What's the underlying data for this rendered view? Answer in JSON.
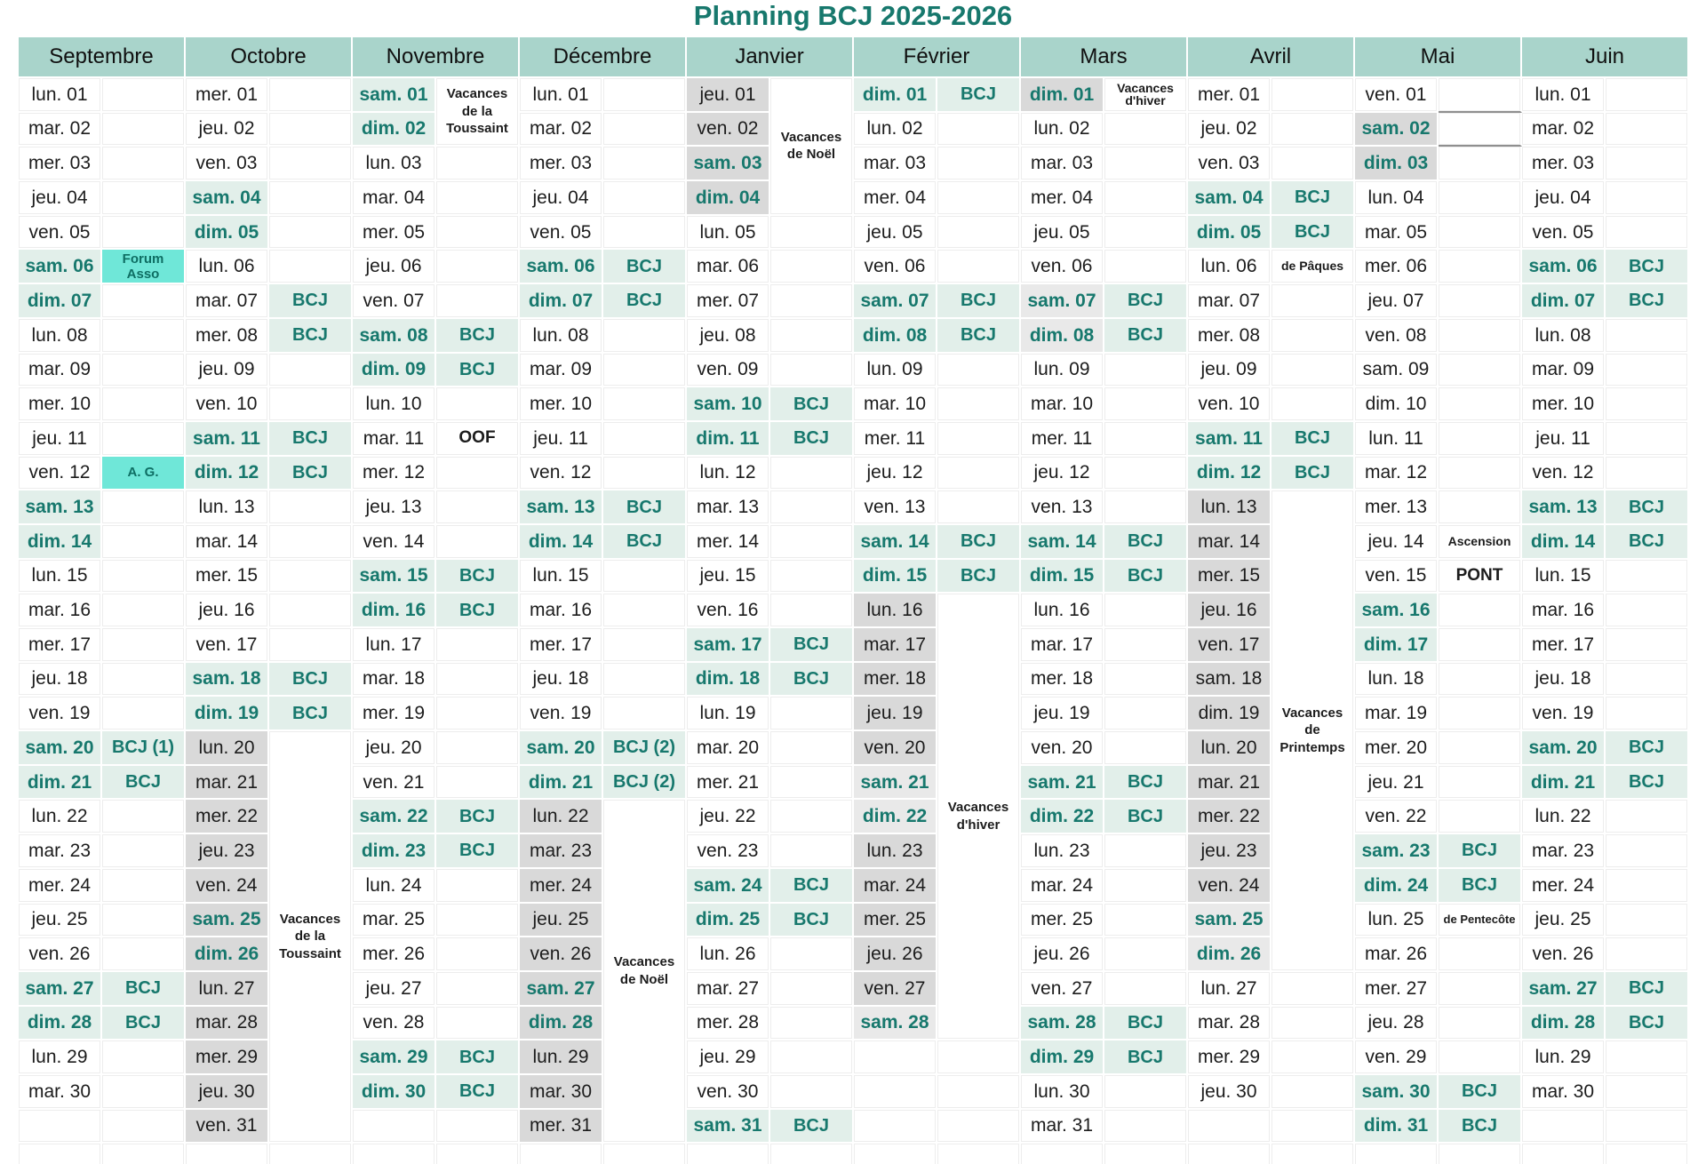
{
  "title": "Planning BCJ 2025-2026",
  "colors": {
    "title_text": "#17786d",
    "header_bg": "#a9d4cb",
    "weekend_bg": "#e2efea",
    "teal_text": "#17786d",
    "bcj_bg": "#e2efea",
    "vacation_gray": "#d9d9d9",
    "vacation_light_gray": "#e9e9e9",
    "event_bg": "#6fe7d8",
    "gridline": "#ededed",
    "box_border": "#8f8f8f"
  },
  "calendar": {
    "months": [
      {
        "name": "Septembre",
        "days": [
          "lun. 01",
          "mar. 02",
          "mer. 03",
          "jeu. 04",
          "ven. 05",
          [
            "sam. 06",
            "we",
            "Forum\nAsso",
            "event"
          ],
          [
            "dim. 07",
            "we"
          ],
          "lun. 08",
          "mar. 09",
          "mer. 10",
          "jeu. 11",
          [
            "ven. 12",
            "",
            "A. G.",
            "event"
          ],
          [
            "sam. 13",
            "we"
          ],
          [
            "dim. 14",
            "we"
          ],
          "lun. 15",
          "mar. 16",
          "mer. 17",
          "jeu. 18",
          "ven. 19",
          [
            "sam. 20",
            "we",
            "BCJ (1)",
            "bcj"
          ],
          [
            "dim. 21",
            "we",
            "BCJ",
            "bcj"
          ],
          "lun. 22",
          "mar. 23",
          "mer. 24",
          "jeu. 25",
          "ven. 26",
          [
            "sam. 27",
            "we",
            "BCJ",
            "bcj"
          ],
          [
            "dim. 28",
            "we",
            "BCJ",
            "bcj"
          ],
          "lun. 29",
          "mar. 30"
        ],
        "merges": []
      },
      {
        "name": "Octobre",
        "days": [
          "mer. 01",
          "jeu. 02",
          "ven. 03",
          [
            "sam. 04",
            "we"
          ],
          [
            "dim. 05",
            "we"
          ],
          "lun. 06",
          [
            "mar. 07",
            "",
            "BCJ",
            "bcj"
          ],
          [
            "mer. 08",
            "",
            "BCJ",
            "bcj"
          ],
          "jeu. 09",
          "ven. 10",
          [
            "sam. 11",
            "we",
            "BCJ",
            "bcj"
          ],
          [
            "dim. 12",
            "we",
            "BCJ",
            "bcj"
          ],
          "lun. 13",
          "mar. 14",
          "mer. 15",
          "jeu. 16",
          "ven. 17",
          [
            "sam. 18",
            "we",
            "BCJ",
            "bcj"
          ],
          [
            "dim. 19",
            "we",
            "BCJ",
            "bcj"
          ],
          [
            "lun. 20",
            "gray"
          ],
          [
            "mar. 21",
            "gray"
          ],
          [
            "mer. 22",
            "gray"
          ],
          [
            "jeu. 23",
            "gray"
          ],
          [
            "ven. 24",
            "gray"
          ],
          [
            "sam. 25",
            "grayWe"
          ],
          [
            "dim. 26",
            "grayWe"
          ],
          [
            "lun. 27",
            "gray"
          ],
          [
            "mar. 28",
            "gray"
          ],
          [
            "mer. 29",
            "gray"
          ],
          [
            "jeu. 30",
            "gray"
          ],
          [
            "ven. 31",
            "gray"
          ]
        ],
        "merges": [
          {
            "start": 20,
            "span": 12,
            "text": "Vacances\nde la\nToussaint"
          }
        ]
      },
      {
        "name": "Novembre",
        "days": [
          [
            "sam. 01",
            "we"
          ],
          [
            "dim. 02",
            "we"
          ],
          "lun. 03",
          "mar. 04",
          "mer. 05",
          "jeu. 06",
          "ven. 07",
          [
            "sam. 08",
            "we",
            "BCJ",
            "bcj"
          ],
          [
            "dim. 09",
            "we",
            "BCJ",
            "bcj"
          ],
          "lun. 10",
          [
            "mar. 11",
            "",
            "OOF",
            "noteLg"
          ],
          "mer. 12",
          "jeu. 13",
          "ven. 14",
          [
            "sam. 15",
            "we",
            "BCJ",
            "bcj"
          ],
          [
            "dim. 16",
            "we",
            "BCJ",
            "bcj"
          ],
          "lun. 17",
          "mar. 18",
          "mer. 19",
          "jeu. 20",
          "ven. 21",
          [
            "sam. 22",
            "we",
            "BCJ",
            "bcj"
          ],
          [
            "dim. 23",
            "we",
            "BCJ",
            "bcj"
          ],
          "lun. 24",
          "mar. 25",
          "mer. 26",
          "jeu. 27",
          "ven. 28",
          [
            "sam. 29",
            "we",
            "BCJ",
            "bcj"
          ],
          [
            "dim. 30",
            "we",
            "BCJ",
            "bcj"
          ]
        ],
        "merges": [
          {
            "start": 1,
            "span": 2,
            "text": "Vacances\nde la\nToussaint"
          }
        ]
      },
      {
        "name": "Décembre",
        "days": [
          "lun. 01",
          "mar. 02",
          "mer. 03",
          "jeu. 04",
          "ven. 05",
          [
            "sam. 06",
            "we",
            "BCJ",
            "bcj"
          ],
          [
            "dim. 07",
            "we",
            "BCJ",
            "bcj"
          ],
          "lun. 08",
          "mar. 09",
          "mer. 10",
          "jeu. 11",
          "ven. 12",
          [
            "sam. 13",
            "we",
            "BCJ",
            "bcj"
          ],
          [
            "dim. 14",
            "we",
            "BCJ",
            "bcj"
          ],
          "lun. 15",
          "mar. 16",
          "mer. 17",
          "jeu. 18",
          "ven. 19",
          [
            "sam. 20",
            "we",
            "BCJ (2)",
            "bcj"
          ],
          [
            "dim. 21",
            "we",
            "BCJ (2)",
            "bcj"
          ],
          [
            "lun. 22",
            "gray"
          ],
          [
            "mar. 23",
            "gray"
          ],
          [
            "mer. 24",
            "gray"
          ],
          [
            "jeu. 25",
            "gray"
          ],
          [
            "ven. 26",
            "gray"
          ],
          [
            "sam. 27",
            "grayWe"
          ],
          [
            "dim. 28",
            "grayWe"
          ],
          [
            "lun. 29",
            "gray"
          ],
          [
            "mar. 30",
            "gray"
          ],
          [
            "mer. 31",
            "gray"
          ]
        ],
        "merges": [
          {
            "start": 22,
            "span": 10,
            "text": "Vacances\nde Noël"
          }
        ]
      },
      {
        "name": "Janvier",
        "days": [
          [
            "jeu. 01",
            "gray"
          ],
          [
            "ven. 02",
            "gray"
          ],
          [
            "sam. 03",
            "grayWe"
          ],
          [
            "dim. 04",
            "grayWe"
          ],
          "lun. 05",
          "mar. 06",
          "mer. 07",
          "jeu. 08",
          "ven. 09",
          [
            "sam. 10",
            "we",
            "BCJ",
            "bcj"
          ],
          [
            "dim. 11",
            "we",
            "BCJ",
            "bcj"
          ],
          "lun. 12",
          "mar. 13",
          "mer. 14",
          "jeu. 15",
          "ven. 16",
          [
            "sam. 17",
            "we",
            "BCJ",
            "bcj"
          ],
          [
            "dim. 18",
            "we",
            "BCJ",
            "bcj"
          ],
          "lun. 19",
          "mar. 20",
          "mer. 21",
          "jeu. 22",
          "ven. 23",
          [
            "sam. 24",
            "we",
            "BCJ",
            "bcj"
          ],
          [
            "dim. 25",
            "we",
            "BCJ",
            "bcj"
          ],
          "lun. 26",
          "mar. 27",
          "mer. 28",
          "jeu. 29",
          "ven. 30",
          [
            "sam. 31",
            "we",
            "BCJ",
            "bcj"
          ]
        ],
        "merges": [
          {
            "start": 1,
            "span": 4,
            "text": "Vacances\nde Noël"
          }
        ]
      },
      {
        "name": "Février",
        "days": [
          [
            "dim. 01",
            "we",
            "BCJ",
            "bcj"
          ],
          "lun. 02",
          "mar. 03",
          "mer. 04",
          "jeu. 05",
          "ven. 06",
          [
            "sam. 07",
            "we",
            "BCJ",
            "bcj"
          ],
          [
            "dim. 08",
            "we",
            "BCJ",
            "bcj"
          ],
          "lun. 09",
          "mar. 10",
          "mer. 11",
          "jeu. 12",
          "ven. 13",
          [
            "sam. 14",
            "we",
            "BCJ",
            "bcj"
          ],
          [
            "dim. 15",
            "we",
            "BCJ",
            "bcj"
          ],
          [
            "lun. 16",
            "gray"
          ],
          [
            "mar. 17",
            "gray"
          ],
          [
            "mer. 18",
            "gray"
          ],
          [
            "jeu. 19",
            "gray"
          ],
          [
            "ven. 20",
            "gray"
          ],
          [
            "sam. 21",
            "lgrayWe"
          ],
          [
            "dim. 22",
            "lgrayWe"
          ],
          [
            "lun. 23",
            "gray"
          ],
          [
            "mar. 24",
            "gray"
          ],
          [
            "mer. 25",
            "gray"
          ],
          [
            "jeu. 26",
            "gray"
          ],
          [
            "ven. 27",
            "gray"
          ],
          [
            "sam. 28",
            "lgrayWe"
          ]
        ],
        "merges": [
          {
            "start": 16,
            "span": 13,
            "text": "Vacances\nd'hiver"
          }
        ]
      },
      {
        "name": "Mars",
        "days": [
          [
            "dim. 01",
            "grayWe",
            "Vacances\nd'hiver",
            "note"
          ],
          "lun. 02",
          "mar. 03",
          "mer. 04",
          "jeu. 05",
          "ven. 06",
          [
            "sam. 07",
            "lgrayWe",
            "BCJ",
            "bcj"
          ],
          [
            "dim. 08",
            "lgrayWe",
            "BCJ",
            "bcj"
          ],
          "lun. 09",
          "mar. 10",
          "mer. 11",
          "jeu. 12",
          "ven. 13",
          [
            "sam. 14",
            "we",
            "BCJ",
            "bcj"
          ],
          [
            "dim. 15",
            "we",
            "BCJ",
            "bcj"
          ],
          "lun. 16",
          "mar. 17",
          "mer. 18",
          "jeu. 19",
          "ven. 20",
          [
            "sam. 21",
            "we",
            "BCJ",
            "bcj"
          ],
          [
            "dim. 22",
            "we",
            "BCJ",
            "bcj"
          ],
          "lun. 23",
          "mar. 24",
          "mer. 25",
          "jeu. 26",
          "ven. 27",
          [
            "sam. 28",
            "we",
            "BCJ",
            "bcj"
          ],
          [
            "dim. 29",
            "we",
            "BCJ",
            "bcj"
          ],
          "lun. 30",
          "mar. 31"
        ],
        "merges": []
      },
      {
        "name": "Avril",
        "days": [
          "mer. 01",
          "jeu. 02",
          "ven. 03",
          [
            "sam. 04",
            "we",
            "BCJ",
            "bcj"
          ],
          [
            "dim. 05",
            "we",
            "BCJ",
            "bcj"
          ],
          [
            "lun. 06",
            "",
            "de Pâques",
            "note"
          ],
          "mar. 07",
          "mer. 08",
          "jeu. 09",
          "ven. 10",
          [
            "sam. 11",
            "we",
            "BCJ",
            "bcj"
          ],
          [
            "dim. 12",
            "we",
            "BCJ",
            "bcj"
          ],
          [
            "lun. 13",
            "gray"
          ],
          [
            "mar. 14",
            "gray"
          ],
          [
            "mer. 15",
            "gray"
          ],
          [
            "jeu. 16",
            "gray"
          ],
          [
            "ven. 17",
            "gray"
          ],
          [
            "sam. 18",
            "gray"
          ],
          [
            "dim. 19",
            "gray"
          ],
          [
            "lun. 20",
            "gray"
          ],
          [
            "mar. 21",
            "gray"
          ],
          [
            "mer. 22",
            "gray"
          ],
          [
            "jeu. 23",
            "gray"
          ],
          [
            "ven. 24",
            "gray"
          ],
          [
            "sam. 25",
            "lgrayWe"
          ],
          [
            "dim. 26",
            "lgrayWe"
          ],
          "lun. 27",
          "mar. 28",
          "mer. 29",
          "jeu. 30"
        ],
        "merges": [
          {
            "start": 13,
            "span": 14,
            "text": "Vacances\nde\nPrintemps"
          }
        ]
      },
      {
        "name": "Mai",
        "days": [
          [
            "ven. 01",
            "",
            null,
            "box"
          ],
          [
            "sam. 02",
            "grayWe",
            null,
            "box"
          ],
          [
            "dim. 03",
            "grayWe"
          ],
          "lun. 04",
          "mar. 05",
          "mer. 06",
          "jeu. 07",
          "ven. 08",
          "sam. 09",
          "dim. 10",
          "lun. 11",
          "mar. 12",
          "mer. 13",
          [
            "jeu. 14",
            "",
            "Ascension",
            "note"
          ],
          [
            "ven. 15",
            "",
            "PONT",
            "noteLg"
          ],
          [
            "sam. 16",
            "we"
          ],
          [
            "dim. 17",
            "we"
          ],
          "lun. 18",
          "mar. 19",
          "mer. 20",
          "jeu. 21",
          "ven. 22",
          [
            "sam. 23",
            "we",
            "BCJ",
            "bcj"
          ],
          [
            "dim. 24",
            "we",
            "BCJ",
            "bcj"
          ],
          [
            "lun. 25",
            "",
            "de Pentecôte",
            "noteSm"
          ],
          "mar. 26",
          "mer. 27",
          "jeu. 28",
          "ven. 29",
          [
            "sam. 30",
            "we",
            "BCJ",
            "bcj"
          ],
          [
            "dim. 31",
            "we",
            "BCJ",
            "bcj"
          ]
        ],
        "merges": []
      },
      {
        "name": "Juin",
        "days": [
          "lun. 01",
          "mar. 02",
          "mer. 03",
          "jeu. 04",
          "ven. 05",
          [
            "sam. 06",
            "we",
            "BCJ",
            "bcj"
          ],
          [
            "dim. 07",
            "we",
            "BCJ",
            "bcj"
          ],
          "lun. 08",
          "mar. 09",
          "mer. 10",
          "jeu. 11",
          "ven. 12",
          [
            "sam. 13",
            "we",
            "BCJ",
            "bcj"
          ],
          [
            "dim. 14",
            "we",
            "BCJ",
            "bcj"
          ],
          "lun. 15",
          "mar. 16",
          "mer. 17",
          "jeu. 18",
          "ven. 19",
          [
            "sam. 20",
            "we",
            "BCJ",
            "bcj"
          ],
          [
            "dim. 21",
            "we",
            "BCJ",
            "bcj"
          ],
          "lun. 22",
          "mar. 23",
          "mer. 24",
          "jeu. 25",
          "ven. 26",
          [
            "sam. 27",
            "we",
            "BCJ",
            "bcj"
          ],
          [
            "dim. 28",
            "we",
            "BCJ",
            "bcj"
          ],
          "lun. 29",
          "mar. 30"
        ],
        "merges": []
      }
    ]
  }
}
